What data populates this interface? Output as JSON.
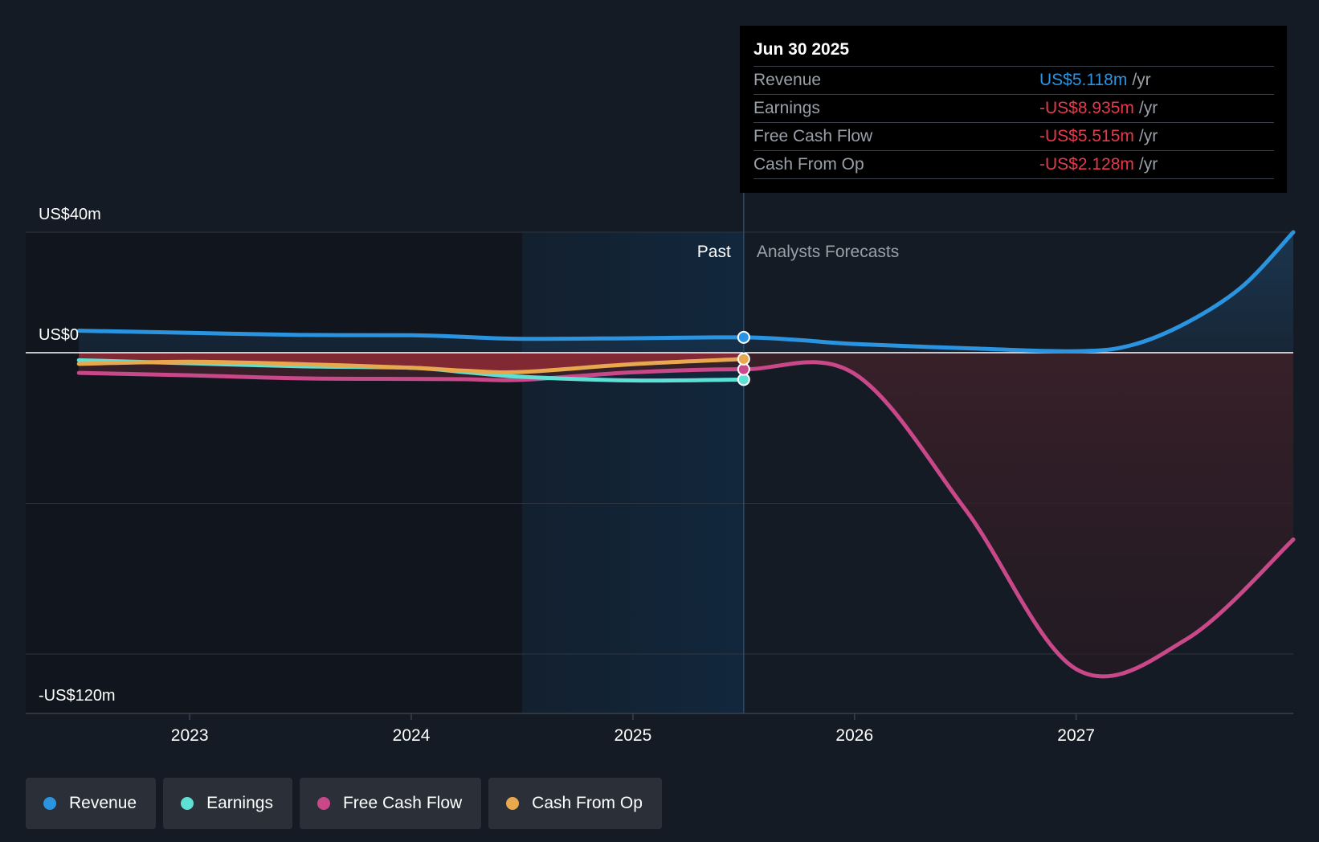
{
  "chart_data": {
    "type": "line",
    "title": "",
    "y_axis": {
      "labels": [
        {
          "value": 40,
          "text": "US$40m"
        },
        {
          "value": 0,
          "text": "US$0"
        },
        {
          "value": -120,
          "text": "-US$120m"
        }
      ],
      "ylim": [
        -120,
        40
      ],
      "gridlines": [
        40,
        0,
        -50,
        -100
      ]
    },
    "x_axis": {
      "ticks": [
        {
          "value": 2023,
          "text": "2023"
        },
        {
          "value": 2024,
          "text": "2024"
        },
        {
          "value": 2025,
          "text": "2025"
        },
        {
          "value": 2026,
          "text": "2026"
        },
        {
          "value": 2027,
          "text": "2027"
        }
      ],
      "xlim": [
        2022.26,
        2027.98
      ]
    },
    "regions": {
      "past_label": "Past",
      "forecast_label": "Analysts Forecasts",
      "highlight_start": 2024.5,
      "divider": 2025.5
    },
    "series": [
      {
        "name": "Revenue",
        "color": "#2b94e0",
        "area": true,
        "points": [
          [
            2022.5,
            7.3
          ],
          [
            2023.0,
            6.6
          ],
          [
            2023.5,
            5.9
          ],
          [
            2024.0,
            5.8
          ],
          [
            2024.25,
            5.2
          ],
          [
            2024.5,
            4.6
          ],
          [
            2025.0,
            4.8
          ],
          [
            2025.5,
            5.1
          ],
          [
            2025.75,
            4.2
          ],
          [
            2026.0,
            2.9
          ],
          [
            2026.5,
            1.5
          ],
          [
            2027.0,
            0.5
          ],
          [
            2027.25,
            2.5
          ],
          [
            2027.5,
            10
          ],
          [
            2027.75,
            22
          ],
          [
            2027.98,
            40
          ]
        ]
      },
      {
        "name": "Earnings",
        "color": "#5ee0d4",
        "area": false,
        "points": [
          [
            2022.5,
            -2.5
          ],
          [
            2023.0,
            -3.5
          ],
          [
            2023.5,
            -4.5
          ],
          [
            2024.0,
            -5.0
          ],
          [
            2024.25,
            -6.5
          ],
          [
            2024.5,
            -8.0
          ],
          [
            2025.0,
            -9.2
          ],
          [
            2025.5,
            -8.9
          ]
        ]
      },
      {
        "name": "Free Cash Flow",
        "color": "#c8488a",
        "area": true,
        "points": [
          [
            2022.5,
            -6.7
          ],
          [
            2023.0,
            -7.5
          ],
          [
            2023.5,
            -8.5
          ],
          [
            2024.0,
            -8.7
          ],
          [
            2024.25,
            -8.8
          ],
          [
            2024.5,
            -9.0
          ],
          [
            2025.0,
            -6.5
          ],
          [
            2025.5,
            -5.5
          ],
          [
            2026.0,
            -7.0
          ],
          [
            2026.5,
            -52
          ],
          [
            2027.0,
            -105
          ],
          [
            2027.5,
            -95
          ],
          [
            2027.98,
            -62
          ]
        ]
      },
      {
        "name": "Cash From Op",
        "color": "#e8a94e",
        "area": true,
        "points": [
          [
            2022.5,
            -3.7
          ],
          [
            2023.0,
            -3.0
          ],
          [
            2023.5,
            -3.8
          ],
          [
            2024.0,
            -5.0
          ],
          [
            2024.25,
            -6.0
          ],
          [
            2024.5,
            -6.4
          ],
          [
            2025.0,
            -3.8
          ],
          [
            2025.5,
            -2.1
          ]
        ]
      }
    ],
    "tooltip": {
      "date": "Jun 30 2025",
      "rows": [
        {
          "label": "Revenue",
          "value": "US$5.118m",
          "unit": "/yr",
          "color": "#2b94e0"
        },
        {
          "label": "Earnings",
          "value": "-US$8.935m",
          "unit": "/yr",
          "color": "#e6394b"
        },
        {
          "label": "Free Cash Flow",
          "value": "-US$5.515m",
          "unit": "/yr",
          "color": "#e6394b"
        },
        {
          "label": "Cash From Op",
          "value": "-US$2.128m",
          "unit": "/yr",
          "color": "#e6394b"
        }
      ]
    },
    "legend": [
      {
        "label": "Revenue",
        "color": "#2b94e0"
      },
      {
        "label": "Earnings",
        "color": "#5ee0d4"
      },
      {
        "label": "Free Cash Flow",
        "color": "#c8488a"
      },
      {
        "label": "Cash From Op",
        "color": "#e8a94e"
      }
    ]
  }
}
